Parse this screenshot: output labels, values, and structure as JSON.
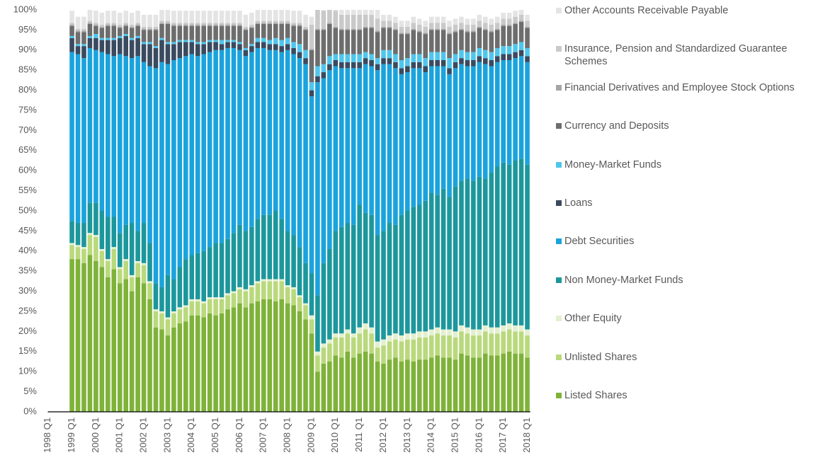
{
  "chart_data": {
    "type": "stacked-bar",
    "categories": [
      "1998 Q1",
      null,
      null,
      null,
      "1999 Q1",
      null,
      null,
      null,
      "2000 Q1",
      null,
      null,
      null,
      "2001 Q1",
      null,
      null,
      null,
      "2002 Q1",
      null,
      null,
      null,
      "2003 Q1",
      null,
      null,
      null,
      "2004 Q1",
      null,
      null,
      null,
      "2005 Q1",
      null,
      null,
      null,
      "2006 Q1",
      null,
      null,
      null,
      "2007 Q1",
      null,
      null,
      null,
      "2008 Q1",
      null,
      null,
      null,
      "2009 Q1",
      null,
      null,
      null,
      "2010 Q1",
      null,
      null,
      null,
      "2011 Q1",
      null,
      null,
      null,
      "2012 Q1",
      null,
      null,
      null,
      "2013 Q1",
      null,
      null,
      null,
      "2014 Q1",
      null,
      null,
      null,
      "2015 Q1",
      null,
      null,
      null,
      "2016 Q1",
      null,
      null,
      null,
      "2017 Q1",
      null,
      null,
      null,
      "2018 Q1"
    ],
    "ylim": [
      0,
      100
    ],
    "yticks": [
      {
        "value": 0,
        "label": "0%"
      },
      {
        "value": 5,
        "label": "5%"
      },
      {
        "value": 10,
        "label": "10%"
      },
      {
        "value": 15,
        "label": "15%"
      },
      {
        "value": 20,
        "label": "20%"
      },
      {
        "value": 25,
        "label": "25%"
      },
      {
        "value": 30,
        "label": "30%"
      },
      {
        "value": 35,
        "label": "35%"
      },
      {
        "value": 40,
        "label": "40%"
      },
      {
        "value": 45,
        "label": "45%"
      },
      {
        "value": 50,
        "label": "50%"
      },
      {
        "value": 55,
        "label": "55%"
      },
      {
        "value": 60,
        "label": "60%"
      },
      {
        "value": 65,
        "label": "65%"
      },
      {
        "value": 70,
        "label": "70%"
      },
      {
        "value": 75,
        "label": "75%"
      },
      {
        "value": 80,
        "label": "80%"
      },
      {
        "value": 85,
        "label": "85%"
      },
      {
        "value": 90,
        "label": "90%"
      },
      {
        "value": 95,
        "label": "95%"
      },
      {
        "value": 100,
        "label": "100%"
      }
    ],
    "grid": false,
    "legend": "right",
    "series": [
      {
        "name": "Listed Shares",
        "color": "#7fb239",
        "values": [
          null,
          null,
          null,
          null,
          38,
          38,
          37,
          39,
          37.5,
          36,
          33.5,
          35.5,
          32,
          33,
          30,
          33.5,
          32,
          28,
          21,
          20.5,
          19,
          21,
          22,
          22.5,
          24,
          24,
          23.5,
          24.5,
          24,
          24.5,
          25.5,
          26,
          27,
          26,
          27,
          27.5,
          28,
          28,
          27.5,
          28,
          27,
          26.5,
          25,
          23,
          19.5,
          10,
          12,
          12.5,
          14,
          13.5,
          15,
          13.5,
          14.5,
          15,
          14.5,
          12.5,
          12,
          13,
          13.5,
          12.5,
          13,
          12.5,
          13,
          13,
          13.5,
          14,
          13.5,
          13.5,
          13,
          14.5,
          14,
          13.5,
          13.5,
          14.5,
          14,
          14,
          14.5,
          15,
          14.5,
          14.5,
          13.5
        ]
      },
      {
        "name": "Unlisted Shares",
        "color": "#b9d97c",
        "values": [
          null,
          null,
          null,
          null,
          3.5,
          3,
          3.5,
          5,
          6,
          4,
          4,
          5,
          3.5,
          4.5,
          3.5,
          3.5,
          4.5,
          4,
          4,
          4,
          4,
          3.5,
          3.5,
          3.5,
          3.5,
          3.5,
          3.5,
          3.5,
          4,
          3.5,
          3.5,
          3.5,
          3.5,
          4,
          4,
          4.5,
          4.5,
          4.5,
          5,
          4.5,
          4,
          4,
          3.5,
          3.5,
          3.5,
          4,
          4,
          4.5,
          4.5,
          5,
          4.5,
          5,
          5,
          5.5,
          5,
          3.5,
          4.5,
          4.5,
          4.5,
          5,
          5,
          5.5,
          5.5,
          5.5,
          5.5,
          5.5,
          5.5,
          5.5,
          5.5,
          5.5,
          5.5,
          5.5,
          5.5,
          5.5,
          5.5,
          5.5,
          5.5,
          5.5,
          5.5,
          5.5,
          5.5
        ]
      },
      {
        "name": "Other Equity",
        "color": "#e3f0cf",
        "values": [
          null,
          null,
          null,
          null,
          0.5,
          0.5,
          0.5,
          0.5,
          0.5,
          0.5,
          0.5,
          0.5,
          0.5,
          0.5,
          0.5,
          0.5,
          0.5,
          0.5,
          0.5,
          0.5,
          0.5,
          0.5,
          0.5,
          0.5,
          0.5,
          0.5,
          0.5,
          0.5,
          0.5,
          0.5,
          0.5,
          0.5,
          0.5,
          0.5,
          0.5,
          0.5,
          0.5,
          0.5,
          0.5,
          0.5,
          0.5,
          0.5,
          0.5,
          0.5,
          1,
          1,
          1,
          1,
          1,
          1,
          1,
          1,
          1.5,
          1.5,
          1.5,
          1.5,
          1.5,
          1.5,
          1.5,
          1.5,
          1.5,
          1.5,
          1.5,
          1.5,
          1.5,
          1.5,
          1.5,
          1.5,
          1.5,
          1.5,
          1.5,
          1.5,
          1.5,
          1.5,
          1.5,
          1.5,
          1.5,
          1.5,
          1.5,
          1.5,
          1.5
        ]
      },
      {
        "name": "Non Money-Market Funds",
        "color": "#1c979c",
        "values": [
          null,
          null,
          null,
          null,
          5.5,
          5.5,
          6,
          7.5,
          8,
          9.5,
          10.5,
          7.5,
          8.5,
          8.5,
          13,
          7.5,
          10,
          9.5,
          6.5,
          6,
          10.5,
          8,
          10,
          11.5,
          11,
          11.5,
          12.5,
          12.5,
          13.5,
          13.5,
          13.5,
          14.5,
          15.5,
          14.5,
          14.5,
          15.5,
          16,
          16,
          17,
          15,
          13.5,
          13,
          12,
          10,
          10.5,
          14,
          20,
          22.5,
          25.5,
          26.5,
          26.5,
          27,
          30.5,
          27.5,
          28,
          26.5,
          27,
          28,
          27,
          30,
          30.5,
          31.5,
          31.5,
          32.5,
          34,
          33,
          35,
          33,
          36,
          36,
          37,
          37,
          38,
          36.5,
          38.5,
          40,
          40.5,
          39.5,
          41,
          41.5,
          41
        ]
      },
      {
        "name": "Debt Securities",
        "color": "#1aa3dd",
        "values": [
          null,
          null,
          null,
          null,
          42,
          42,
          41,
          38.5,
          38,
          39.5,
          40.5,
          40,
          44.5,
          42,
          41,
          43.5,
          40,
          44,
          53.5,
          56,
          52.5,
          54.5,
          52,
          50.5,
          50,
          49,
          49,
          48.5,
          48,
          48,
          47.5,
          46,
          43.5,
          43.5,
          43.5,
          42.5,
          41.5,
          41,
          40,
          41.5,
          45,
          45,
          47,
          49.5,
          44,
          53,
          46,
          44.5,
          41,
          39.5,
          38.5,
          39,
          34,
          37,
          37,
          41,
          41.5,
          39.5,
          39,
          35,
          34.5,
          34.5,
          34,
          32,
          31.5,
          32,
          30.5,
          30.5,
          29.5,
          29,
          28,
          28.5,
          28.5,
          28.5,
          26.5,
          26,
          25.5,
          26,
          25.5,
          25.5,
          25.5
        ]
      },
      {
        "name": "Loans",
        "color": "#3a4a5f",
        "values": [
          null,
          null,
          null,
          null,
          3.5,
          2,
          3,
          2.5,
          3,
          3,
          3.5,
          4,
          4,
          5,
          4.5,
          4.5,
          4.5,
          5.5,
          5,
          5.5,
          5,
          4,
          4,
          3.5,
          3,
          3,
          2.5,
          2.5,
          2,
          1.5,
          1.5,
          1.5,
          1.5,
          1.5,
          1.5,
          1.5,
          1.5,
          1.5,
          1.5,
          1.5,
          1.5,
          1.5,
          1.5,
          1.5,
          1.5,
          1.5,
          1.5,
          1.5,
          1.5,
          1.5,
          1.5,
          1.5,
          1.5,
          1.5,
          1.5,
          1.5,
          1.5,
          1.5,
          1.5,
          1.5,
          1.5,
          1.5,
          1.5,
          1.5,
          1.5,
          1.5,
          1.5,
          1.5,
          1.5,
          1.5,
          1.5,
          1.5,
          1.5,
          1.5,
          1.5,
          1.5,
          1.5,
          1.5,
          1.5,
          1.5,
          1.5
        ]
      },
      {
        "name": "Money-Market Funds",
        "color": "#4fc6ec",
        "values": [
          null,
          null,
          null,
          null,
          0.5,
          0.5,
          0.5,
          0.5,
          1,
          0.5,
          0.5,
          0.5,
          0.5,
          0.5,
          0.5,
          0.5,
          0.5,
          0.5,
          0.5,
          0.5,
          0.5,
          0.5,
          0.5,
          0.5,
          0.5,
          0.5,
          0.5,
          0.5,
          0.5,
          1,
          0.5,
          0.5,
          0.5,
          0.5,
          0.5,
          1,
          1,
          1,
          1.5,
          1.5,
          1.5,
          1.5,
          2,
          2,
          2,
          2.5,
          2,
          2,
          1.5,
          2,
          2,
          2,
          2,
          1.5,
          1.5,
          1.5,
          2,
          2,
          2,
          2,
          2,
          2,
          2,
          2,
          2,
          2,
          2,
          2.5,
          2,
          2,
          2,
          2,
          2,
          2,
          2,
          2,
          2,
          2,
          2,
          2,
          2
        ]
      },
      {
        "name": "Currency and Deposits",
        "color": "#6d6d6d",
        "values": [
          null,
          null,
          null,
          null,
          2.5,
          3,
          3,
          3,
          2,
          2.5,
          3,
          3,
          2,
          2,
          2.5,
          2.5,
          3,
          3,
          4,
          3.5,
          4.5,
          4,
          3.5,
          3.5,
          3.5,
          4,
          4,
          3.5,
          3.5,
          3.5,
          3.5,
          3.5,
          4,
          4.5,
          4,
          3.5,
          3.5,
          4,
          3.5,
          4,
          3.5,
          4,
          4.5,
          5,
          8,
          9,
          8.5,
          8,
          6.5,
          6,
          6,
          6,
          6,
          6,
          6.5,
          6.5,
          5.5,
          5.5,
          6,
          6.5,
          6,
          6,
          5.5,
          6,
          5.5,
          5.5,
          5.5,
          6,
          5.5,
          5,
          5,
          5,
          5,
          5,
          5,
          4.5,
          5,
          5,
          5,
          5,
          5
        ]
      },
      {
        "name": "Financial Derivatives and Employee Stock Options",
        "color": "#a5a5a5",
        "values": [
          null,
          null,
          null,
          null,
          0.3,
          0.3,
          0.3,
          0.3,
          0.3,
          0.3,
          0.3,
          0.3,
          0.3,
          0.3,
          0.3,
          0.3,
          0.3,
          0.3,
          0.3,
          0.3,
          0.3,
          0.3,
          0.3,
          0.3,
          0.3,
          0.3,
          0.3,
          0.3,
          0.3,
          0.3,
          0.3,
          0.3,
          0.3,
          0.3,
          0.3,
          0.3,
          0.3,
          0.3,
          0.3,
          0.3,
          0.3,
          0.3,
          0.3,
          0.3,
          0.3,
          0.3,
          0.3,
          0.3,
          0.3,
          0.3,
          0.3,
          0.3,
          0.3,
          0.3,
          0.3,
          0.3,
          0.3,
          0.3,
          0.3,
          0.3,
          0.3,
          0.3,
          0.3,
          0.3,
          0.3,
          0.3,
          0.3,
          0.3,
          0.3,
          0.3,
          0.3,
          0.3,
          0.3,
          0.3,
          0.3,
          0.3,
          0.3,
          0.3,
          0.3,
          0.3,
          0.3
        ]
      },
      {
        "name": "Insurance, Pension and Standardized Guarantee Schemes",
        "color": "#c9c9c9",
        "values": [
          null,
          null,
          null,
          null,
          0.5,
          0.5,
          0.5,
          0.5,
          0.5,
          0.5,
          0.5,
          0.5,
          0.5,
          0.5,
          0.5,
          0.5,
          0.5,
          0.5,
          0.5,
          0.5,
          0.5,
          0.5,
          0.5,
          0.5,
          0.5,
          0.5,
          0.5,
          0.5,
          0.5,
          0.5,
          0.5,
          0.5,
          0.5,
          0.5,
          0.5,
          0.5,
          0.5,
          0.5,
          0.5,
          0.5,
          0.5,
          0.5,
          0.5,
          0.5,
          6,
          5,
          4.5,
          4,
          4,
          3.5,
          3.5,
          3.5,
          3.5,
          3,
          3,
          3,
          1.5,
          1.5,
          1.5,
          1.5,
          1.5,
          1.5,
          1.5,
          1.5,
          1.5,
          1.5,
          1.5,
          1.5,
          1.5,
          1.5,
          1.5,
          1.5,
          1.5,
          1.5,
          1.5,
          1.5,
          1.5,
          1.5,
          1.5,
          1.5,
          1.5
        ]
      },
      {
        "name": "Other Accounts Receivable Payable",
        "color": "#e4e4e4",
        "values": [
          null,
          null,
          null,
          null,
          3,
          3,
          3,
          3,
          3,
          3,
          3,
          3,
          3,
          3,
          3,
          3,
          3,
          3,
          3,
          3,
          3,
          3,
          3,
          3,
          3,
          3,
          3,
          3,
          3,
          3,
          3,
          3,
          3,
          3,
          3,
          3,
          3,
          3,
          3,
          3,
          3,
          3,
          3,
          3,
          2,
          2,
          2,
          2,
          2.5,
          2.5,
          2.5,
          2.5,
          2.5,
          2.5,
          2.5,
          2.5,
          1.5,
          1.5,
          1.5,
          1.5,
          1.5,
          1.5,
          1.5,
          1.5,
          1.5,
          1.5,
          1.5,
          1.5,
          1.5,
          1.5,
          1.5,
          1.5,
          1.5,
          1.5,
          1.5,
          1.5,
          1.5,
          1.5,
          1.5,
          1.5,
          1.5
        ]
      }
    ]
  }
}
